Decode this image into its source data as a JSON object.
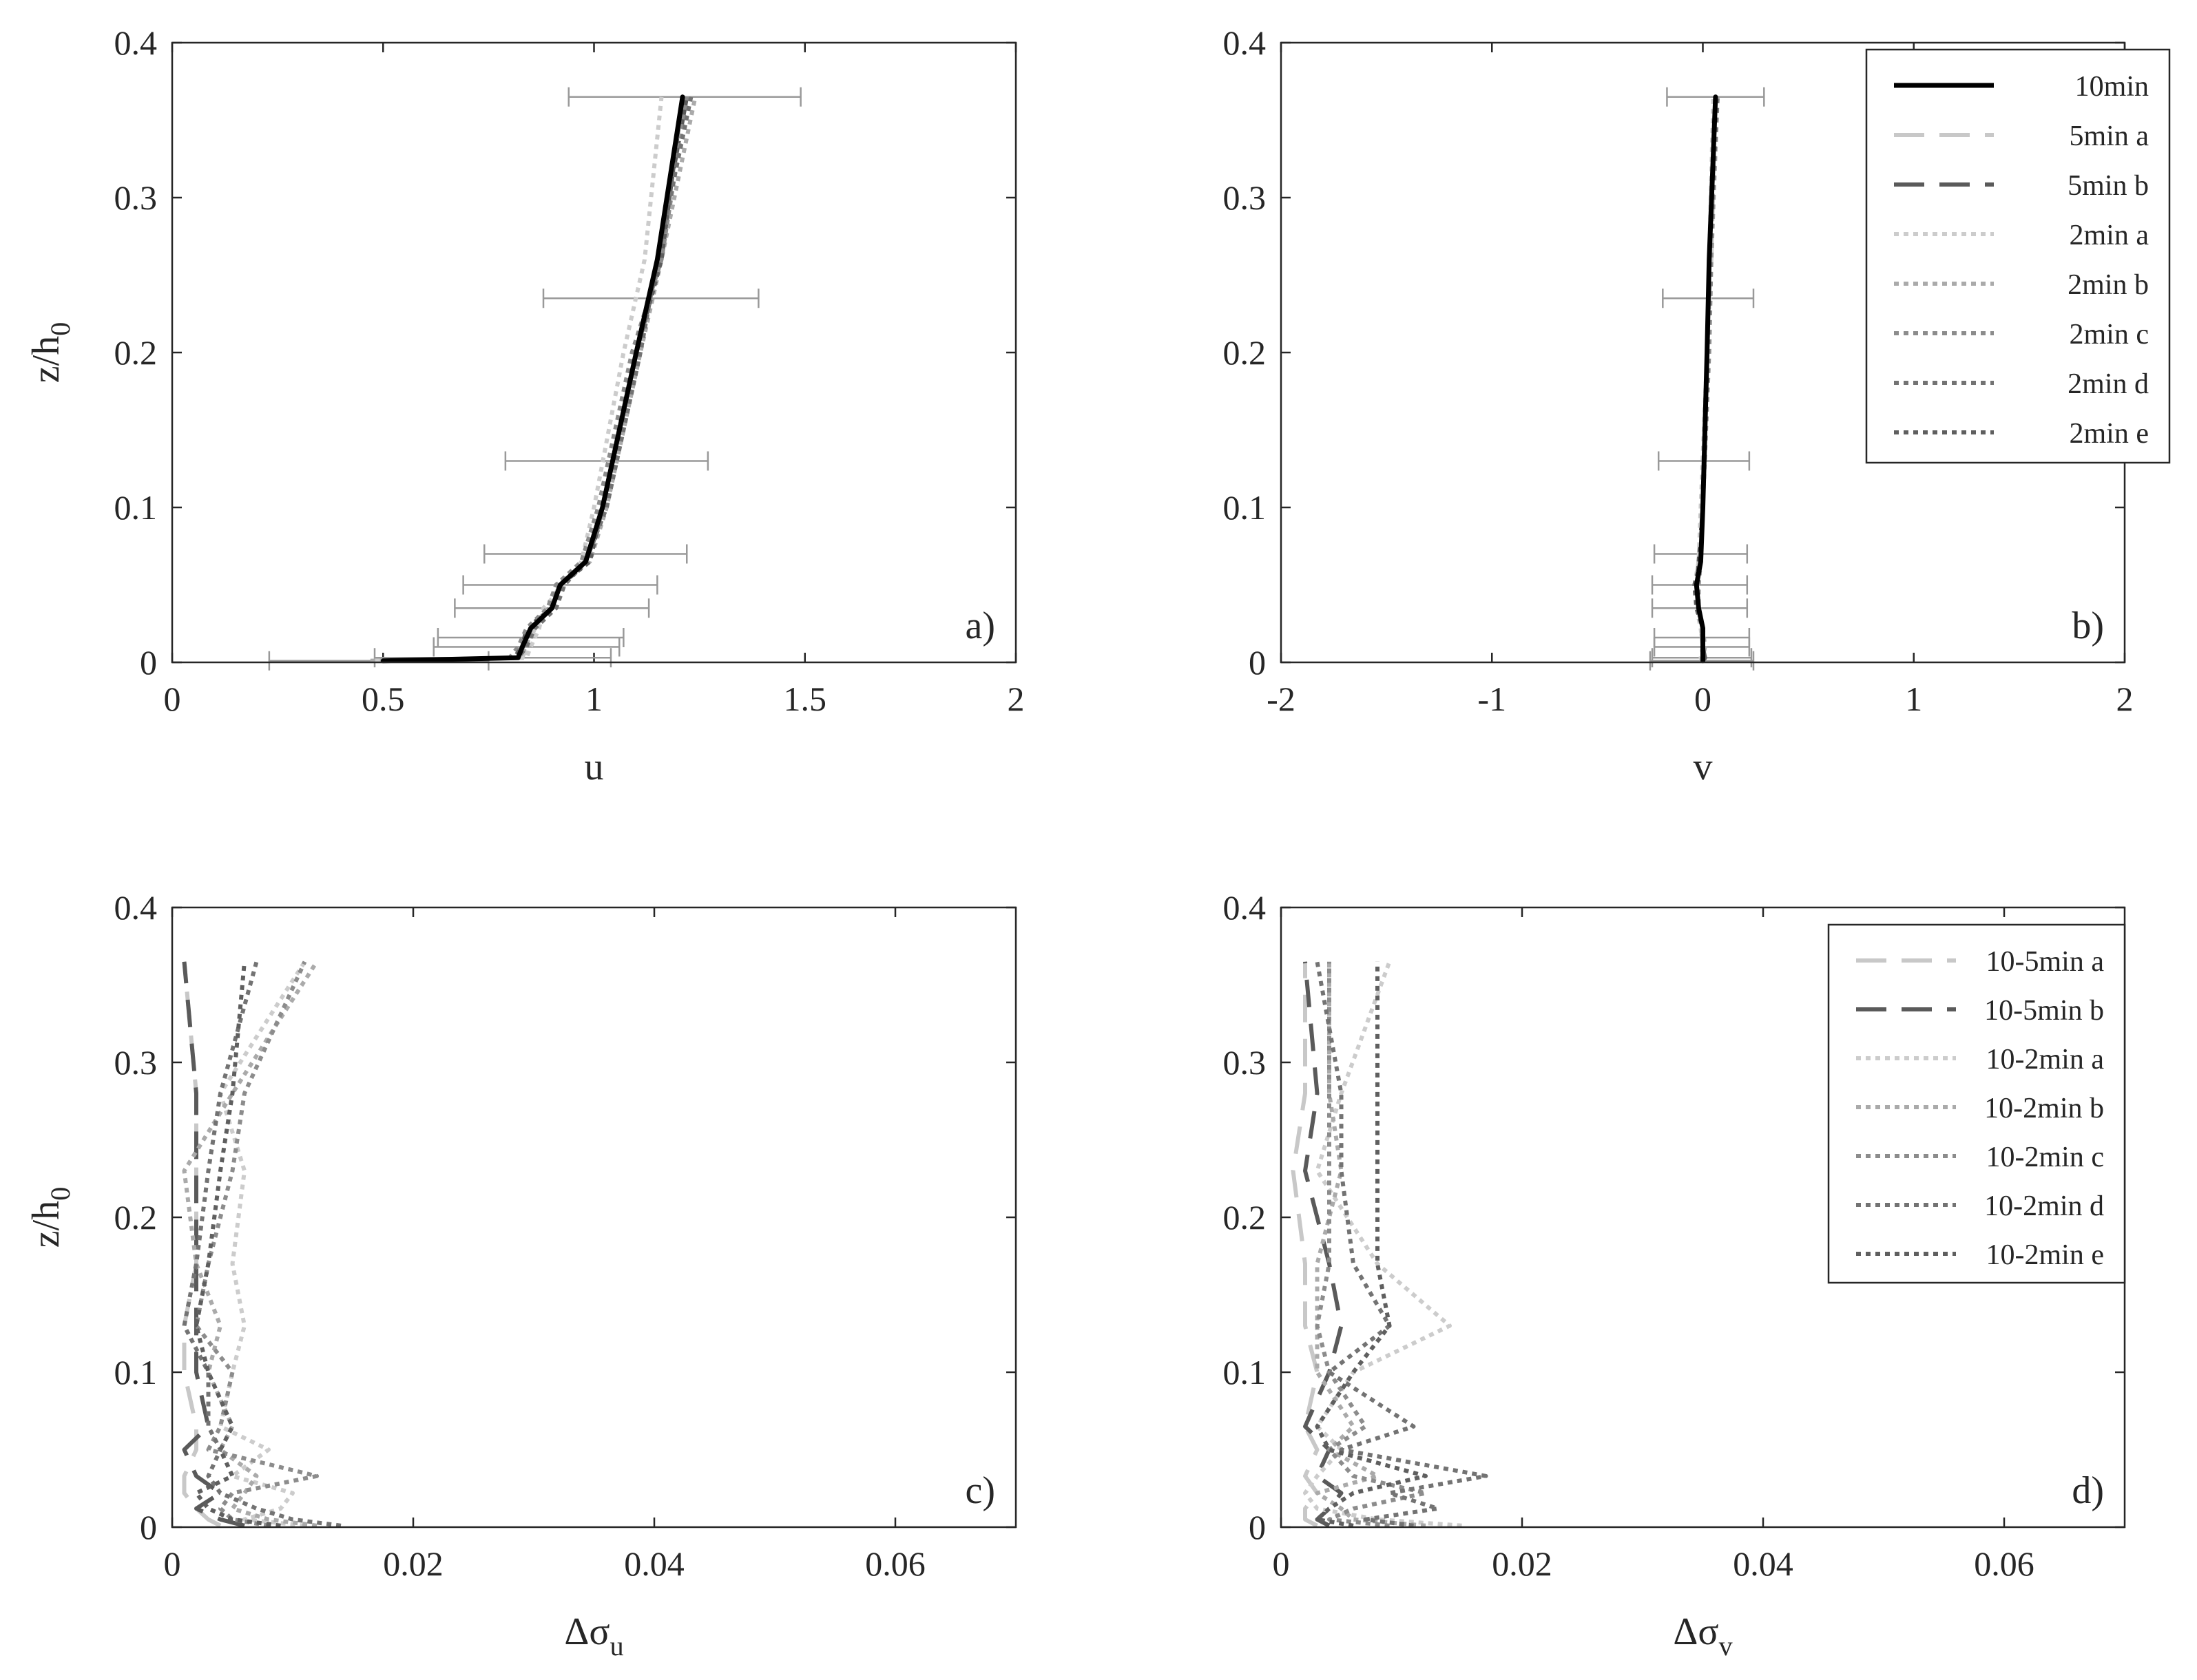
{
  "chart_data": [
    {
      "panel": "a)",
      "type": "line",
      "xlabel": "u",
      "ylabel": "z/h",
      "ylabel_sub": "0",
      "xlim": [
        0,
        2
      ],
      "ylim": [
        0,
        0.4
      ],
      "xticks": [
        "0",
        "0.5",
        "1",
        "1.5",
        "2"
      ],
      "yticks": [
        "0",
        "0.1",
        "0.2",
        "0.3",
        "0.4"
      ],
      "z": [
        0.001,
        0.003,
        0.01,
        0.022,
        0.035,
        0.05,
        0.065,
        0.1,
        0.2,
        0.26,
        0.365
      ],
      "series": [
        {
          "name": "10min",
          "color": "#000000",
          "dash": "",
          "values": [
            0.5,
            0.82,
            0.83,
            0.85,
            0.9,
            0.92,
            0.98,
            1.02,
            1.1,
            1.15,
            1.21
          ]
        },
        {
          "name": "5min a",
          "color": "#c8c8c8",
          "dash": "40,24",
          "values": [
            0.47,
            0.83,
            0.84,
            0.86,
            0.89,
            0.92,
            0.98,
            1.02,
            1.1,
            1.15,
            1.21
          ]
        },
        {
          "name": "5min b",
          "color": "#5a5a5a",
          "dash": "40,24",
          "values": [
            0.5,
            0.82,
            0.83,
            0.84,
            0.9,
            0.92,
            0.98,
            1.02,
            1.1,
            1.15,
            1.22
          ]
        },
        {
          "name": "2min a",
          "color": "#cccccc",
          "dash": "7,7",
          "values": [
            0.48,
            0.84,
            0.85,
            0.87,
            0.88,
            0.93,
            0.97,
            1.0,
            1.07,
            1.12,
            1.16
          ]
        },
        {
          "name": "2min b",
          "color": "#aaaaaa",
          "dash": "7,7",
          "values": [
            0.47,
            0.82,
            0.84,
            0.85,
            0.9,
            0.91,
            0.99,
            1.03,
            1.11,
            1.16,
            1.24
          ]
        },
        {
          "name": "2min c",
          "color": "#8c8c8c",
          "dash": "7,7",
          "values": [
            0.5,
            0.8,
            0.82,
            0.84,
            0.89,
            0.91,
            0.97,
            1.01,
            1.09,
            1.16,
            1.22
          ]
        },
        {
          "name": "2min d",
          "color": "#737373",
          "dash": "7,7",
          "values": [
            0.51,
            0.82,
            0.84,
            0.86,
            0.91,
            0.93,
            0.98,
            1.03,
            1.11,
            1.15,
            1.23
          ]
        },
        {
          "name": "2min e",
          "color": "#5f5f5f",
          "dash": "7,7",
          "values": [
            0.5,
            0.81,
            0.83,
            0.85,
            0.9,
            0.92,
            0.99,
            1.02,
            1.1,
            1.16,
            1.21
          ]
        }
      ],
      "errorbars": [
        {
          "z": 0.001,
          "low": 0.23,
          "high": 0.75
        },
        {
          "z": 0.003,
          "low": 0.48,
          "high": 1.04
        },
        {
          "z": 0.01,
          "low": 0.62,
          "high": 1.06
        },
        {
          "z": 0.016,
          "low": 0.63,
          "high": 1.07
        },
        {
          "z": 0.035,
          "low": 0.67,
          "high": 1.13
        },
        {
          "z": 0.05,
          "low": 0.69,
          "high": 1.15
        },
        {
          "z": 0.07,
          "low": 0.74,
          "high": 1.22
        },
        {
          "z": 0.13,
          "low": 0.79,
          "high": 1.27
        },
        {
          "z": 0.235,
          "low": 0.88,
          "high": 1.39
        },
        {
          "z": 0.365,
          "low": 0.94,
          "high": 1.49
        }
      ]
    },
    {
      "panel": "b)",
      "type": "line",
      "xlabel": "v",
      "ylabel": "",
      "ylabel_sub": "",
      "xlim": [
        -2,
        2
      ],
      "ylim": [
        0,
        0.4
      ],
      "xticks": [
        "-2",
        "-1",
        "0",
        "1",
        "2"
      ],
      "yticks": [
        "0",
        "0.1",
        "0.2",
        "0.3",
        "0.4"
      ],
      "z": [
        0.001,
        0.003,
        0.01,
        0.022,
        0.035,
        0.05,
        0.065,
        0.1,
        0.2,
        0.26,
        0.365
      ],
      "series": [
        {
          "name": "10min",
          "color": "#000000",
          "dash": "",
          "values": [
            0.0,
            0.0,
            0.0,
            0.0,
            -0.02,
            -0.03,
            -0.01,
            0.0,
            0.02,
            0.03,
            0.06
          ]
        },
        {
          "name": "5min a",
          "color": "#c8c8c8",
          "dash": "40,24",
          "values": [
            0.0,
            0.0,
            0.0,
            -0.01,
            -0.02,
            -0.03,
            -0.01,
            0.0,
            0.02,
            0.04,
            0.06
          ]
        },
        {
          "name": "5min b",
          "color": "#5a5a5a",
          "dash": "40,24",
          "values": [
            0.0,
            0.01,
            0.0,
            0.0,
            -0.02,
            -0.03,
            -0.02,
            0.0,
            0.02,
            0.03,
            0.06
          ]
        },
        {
          "name": "2min a",
          "color": "#cccccc",
          "dash": "7,7",
          "values": [
            0.0,
            -0.01,
            0.0,
            -0.01,
            -0.03,
            -0.04,
            -0.02,
            -0.01,
            0.02,
            0.03,
            0.05
          ]
        },
        {
          "name": "2min b",
          "color": "#aaaaaa",
          "dash": "7,7",
          "values": [
            0.0,
            0.0,
            0.01,
            0.0,
            -0.02,
            -0.03,
            -0.01,
            0.0,
            0.02,
            0.04,
            0.07
          ]
        },
        {
          "name": "2min c",
          "color": "#8c8c8c",
          "dash": "7,7",
          "values": [
            0.01,
            0.0,
            0.0,
            0.0,
            -0.02,
            -0.02,
            -0.01,
            0.0,
            0.03,
            0.04,
            0.06
          ]
        },
        {
          "name": "2min d",
          "color": "#737373",
          "dash": "7,7",
          "values": [
            0.0,
            0.0,
            0.0,
            0.0,
            -0.02,
            -0.03,
            -0.01,
            0.0,
            0.02,
            0.03,
            0.07
          ]
        },
        {
          "name": "2min e",
          "color": "#5f5f5f",
          "dash": "7,7",
          "values": [
            0.0,
            0.01,
            0.0,
            0.0,
            -0.03,
            -0.04,
            -0.01,
            0.0,
            0.02,
            0.03,
            0.06
          ]
        }
      ],
      "errorbars": [
        {
          "z": 0.001,
          "low": -0.25,
          "high": 0.24
        },
        {
          "z": 0.003,
          "low": -0.24,
          "high": 0.23
        },
        {
          "z": 0.01,
          "low": -0.23,
          "high": 0.22
        },
        {
          "z": 0.016,
          "low": -0.23,
          "high": 0.22
        },
        {
          "z": 0.035,
          "low": -0.24,
          "high": 0.21
        },
        {
          "z": 0.05,
          "low": -0.24,
          "high": 0.21
        },
        {
          "z": 0.07,
          "low": -0.23,
          "high": 0.21
        },
        {
          "z": 0.13,
          "low": -0.21,
          "high": 0.22
        },
        {
          "z": 0.235,
          "low": -0.19,
          "high": 0.24
        },
        {
          "z": 0.365,
          "low": -0.17,
          "high": 0.29
        }
      ],
      "legend": {
        "placement": "top-right",
        "entries": [
          "10min",
          "5min a",
          "5min b",
          "2min a",
          "2min b",
          "2min c",
          "2min d",
          "2min e"
        ]
      }
    },
    {
      "panel": "c)",
      "type": "line",
      "xlabel": "Δσ",
      "xlabel_sub": "u",
      "ylabel": "z/h",
      "ylabel_sub": "0",
      "xlim": [
        0,
        0.07
      ],
      "ylim": [
        0,
        0.4
      ],
      "xticks": [
        "0",
        "0.02",
        "0.04",
        "0.06"
      ],
      "yticks": [
        "0",
        "0.1",
        "0.2",
        "0.3",
        "0.4"
      ],
      "z": [
        0.001,
        0.005,
        0.012,
        0.022,
        0.033,
        0.05,
        0.065,
        0.1,
        0.13,
        0.17,
        0.23,
        0.28,
        0.365
      ],
      "series": [
        {
          "name": "10-5min a",
          "color": "#c8c8c8",
          "dash": "40,24",
          "values": [
            0.004,
            0.003,
            0.002,
            0.001,
            0.001,
            0.002,
            0.002,
            0.001,
            0.001,
            0.002,
            0.002,
            0.002,
            0.001
          ]
        },
        {
          "name": "10-5min b",
          "color": "#5a5a5a",
          "dash": "40,24",
          "values": [
            0.006,
            0.004,
            0.002,
            0.004,
            0.002,
            0.001,
            0.003,
            0.002,
            0.002,
            0.002,
            0.002,
            0.002,
            0.001
          ]
        },
        {
          "name": "10-2min a",
          "color": "#cccccc",
          "dash": "7,7",
          "values": [
            0.011,
            0.006,
            0.009,
            0.01,
            0.005,
            0.008,
            0.004,
            0.005,
            0.006,
            0.005,
            0.006,
            0.004,
            0.011
          ]
        },
        {
          "name": "10-2min b",
          "color": "#aaaaaa",
          "dash": "7,7",
          "values": [
            0.012,
            0.008,
            0.005,
            0.006,
            0.007,
            0.004,
            0.005,
            0.003,
            0.004,
            0.002,
            0.001,
            0.005,
            0.012
          ]
        },
        {
          "name": "10-2min c",
          "color": "#8c8c8c",
          "dash": "7,7",
          "values": [
            0.008,
            0.005,
            0.004,
            0.005,
            0.012,
            0.003,
            0.004,
            0.005,
            0.002,
            0.003,
            0.005,
            0.006,
            0.011
          ]
        },
        {
          "name": "10-2min d",
          "color": "#737373",
          "dash": "7,7",
          "values": [
            0.014,
            0.01,
            0.007,
            0.004,
            0.003,
            0.004,
            0.003,
            0.003,
            0.001,
            0.002,
            0.003,
            0.004,
            0.007
          ]
        },
        {
          "name": "10-2min e",
          "color": "#5f5f5f",
          "dash": "7,7",
          "values": [
            0.009,
            0.005,
            0.003,
            0.002,
            0.005,
            0.004,
            0.005,
            0.003,
            0.002,
            0.003,
            0.004,
            0.005,
            0.006
          ]
        }
      ]
    },
    {
      "panel": "d)",
      "type": "line",
      "xlabel": "Δσ",
      "xlabel_sub": "v",
      "ylabel": "",
      "ylabel_sub": "",
      "xlim": [
        0,
        0.07
      ],
      "ylim": [
        0,
        0.4
      ],
      "xticks": [
        "0",
        "0.02",
        "0.04",
        "0.06"
      ],
      "yticks": [
        "0",
        "0.1",
        "0.2",
        "0.3",
        "0.4"
      ],
      "z": [
        0.001,
        0.005,
        0.012,
        0.022,
        0.033,
        0.05,
        0.065,
        0.1,
        0.13,
        0.17,
        0.23,
        0.28,
        0.365
      ],
      "series": [
        {
          "name": "10-5min a",
          "color": "#c8c8c8",
          "dash": "40,24",
          "values": [
            0.003,
            0.002,
            0.002,
            0.003,
            0.002,
            0.003,
            0.002,
            0.003,
            0.002,
            0.002,
            0.001,
            0.002,
            0.002
          ]
        },
        {
          "name": "10-5min b",
          "color": "#5a5a5a",
          "dash": "40,24",
          "values": [
            0.004,
            0.003,
            0.004,
            0.005,
            0.003,
            0.004,
            0.002,
            0.004,
            0.005,
            0.004,
            0.002,
            0.003,
            0.002
          ]
        },
        {
          "name": "10-2min a",
          "color": "#cccccc",
          "dash": "7,7",
          "values": [
            0.015,
            0.008,
            0.003,
            0.002,
            0.003,
            0.005,
            0.003,
            0.006,
            0.014,
            0.008,
            0.003,
            0.005,
            0.009
          ]
        },
        {
          "name": "10-2min b",
          "color": "#aaaaaa",
          "dash": "7,7",
          "values": [
            0.012,
            0.006,
            0.005,
            0.003,
            0.008,
            0.004,
            0.006,
            0.003,
            0.003,
            0.003,
            0.005,
            0.004,
            0.004
          ]
        },
        {
          "name": "10-2min c",
          "color": "#8c8c8c",
          "dash": "7,7",
          "values": [
            0.009,
            0.004,
            0.006,
            0.012,
            0.006,
            0.004,
            0.007,
            0.004,
            0.003,
            0.004,
            0.004,
            0.004,
            0.004
          ]
        },
        {
          "name": "10-2min d",
          "color": "#737373",
          "dash": "7,7",
          "values": [
            0.011,
            0.007,
            0.013,
            0.009,
            0.017,
            0.005,
            0.011,
            0.004,
            0.009,
            0.006,
            0.005,
            0.005,
            0.003
          ]
        },
        {
          "name": "10-2min e",
          "color": "#5f5f5f",
          "dash": "7,7",
          "values": [
            0.006,
            0.003,
            0.004,
            0.006,
            0.012,
            0.004,
            0.003,
            0.006,
            0.009,
            0.008,
            0.008,
            0.008,
            0.008
          ]
        }
      ],
      "legend": {
        "placement": "top-right",
        "entries": [
          "10-5min a",
          "10-5min b",
          "10-2min a",
          "10-2min b",
          "10-2min c",
          "10-2min d",
          "10-2min e"
        ]
      }
    }
  ]
}
